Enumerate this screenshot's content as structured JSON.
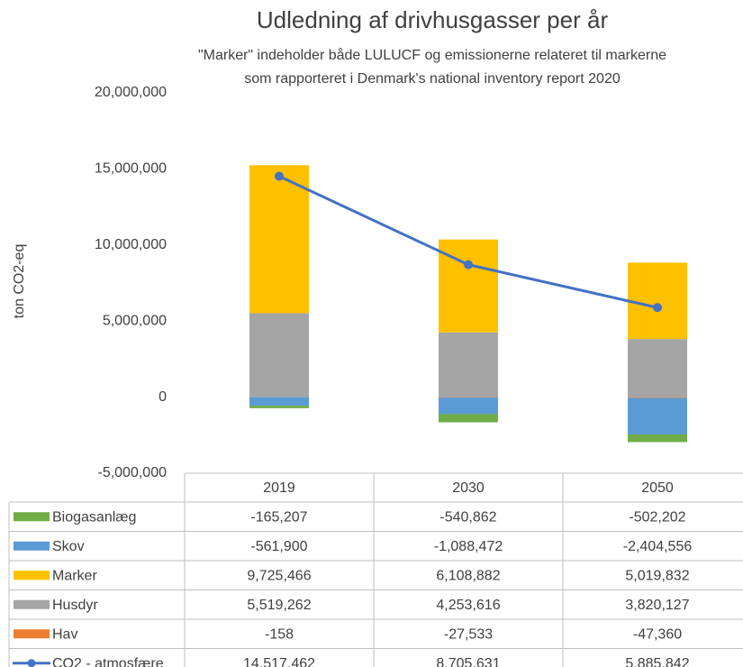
{
  "chart_data": {
    "type": "bar",
    "stacked": true,
    "title": "Udledning af drivhusgasser per år",
    "subtitle": [
      "\"Marker\" indeholder både LULUCF og emissionerne relateret til markerne",
      "som rapporteret i Denmark's national inventory report 2020"
    ],
    "y_label": "ton CO2-eq",
    "categories": [
      "2019",
      "2030",
      "2050"
    ],
    "ylim": [
      -5000000,
      20000000
    ],
    "yticks": [
      {
        "value": -5000000,
        "label": "-5,000,000"
      },
      0,
      {
        "value": 5000000,
        "label": "5,000,000"
      },
      {
        "value": 10000000,
        "label": "10,000,000"
      },
      {
        "value": 15000000,
        "label": "15,000,000"
      },
      {
        "value": 20000000,
        "label": "20,000,000"
      }
    ],
    "series": [
      {
        "name": "Biogasanlæg",
        "type": "bar",
        "color": "#70ad47",
        "values": [
          -165207,
          -540862,
          -502202
        ],
        "value_labels": [
          "-165,207",
          "-540,862",
          "-502,202"
        ]
      },
      {
        "name": "Skov",
        "type": "bar",
        "color": "#5b9bd5",
        "values": [
          -561900,
          -1088472,
          -2404556
        ],
        "value_labels": [
          "-561,900",
          "-1,088,472",
          "-2,404,556"
        ]
      },
      {
        "name": "Marker",
        "type": "bar",
        "color": "#ffc000",
        "values": [
          9725466,
          6108882,
          5019832
        ],
        "value_labels": [
          "9,725,466",
          "6,108,882",
          "5,019,832"
        ]
      },
      {
        "name": "Husdyr",
        "type": "bar",
        "color": "#a5a5a5",
        "values": [
          5519262,
          4253616,
          3820127
        ],
        "value_labels": [
          "5,519,262",
          "4,253,616",
          "3,820,127"
        ]
      },
      {
        "name": "Hav",
        "type": "bar",
        "color": "#ed7d31",
        "values": [
          -158,
          -27533,
          -47360
        ],
        "value_labels": [
          "-158",
          "-27,533",
          "-47,360"
        ]
      },
      {
        "name": "CO2 - atmosfære",
        "type": "line",
        "color": "#4472c4",
        "values": [
          14517462,
          8705631,
          5885842
        ],
        "value_labels": [
          "14,517,462",
          "8,705,631",
          "5,885,842"
        ]
      }
    ]
  }
}
